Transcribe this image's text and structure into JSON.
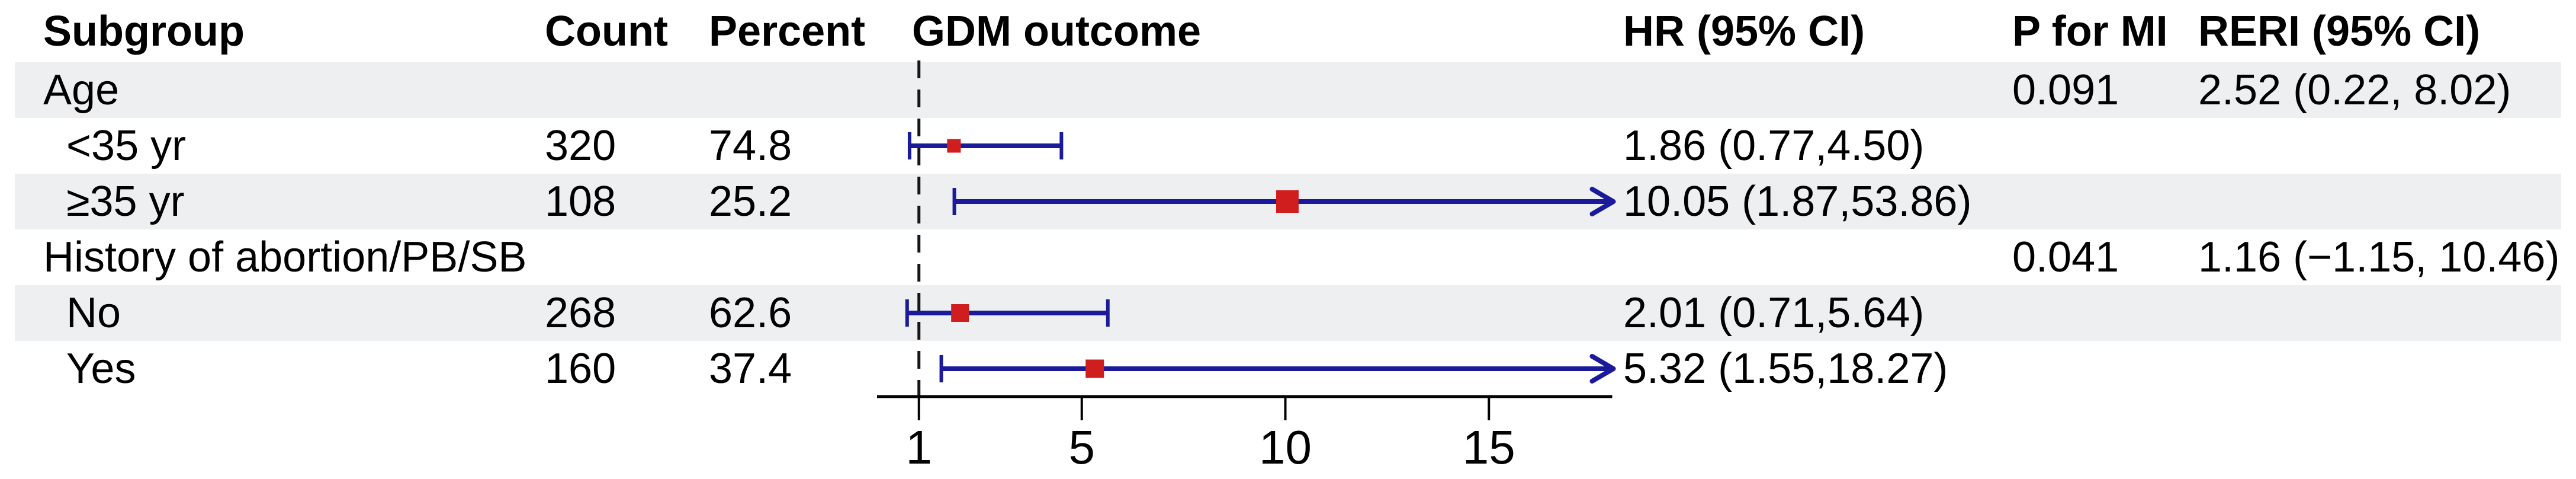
{
  "figure": {
    "headers": {
      "subgroup": "Subgroup",
      "count": "Count",
      "percent": "Percent",
      "gdm_outcome": "GDM outcome",
      "hr_ci": "HR (95% CI)",
      "p_for_mi": "P for MI",
      "reri_ci": "RERI (95% CI)"
    },
    "rows": [
      {
        "label": "Age",
        "count": "",
        "percent": "",
        "hr_ci": "",
        "p_for_mi": "0.091",
        "reri_ci": "2.52 (0.22, 8.02)"
      },
      {
        "label": "<35 yr",
        "count": "320",
        "percent": "74.8",
        "hr_ci": "1.86 (0.77,4.50)",
        "p_for_mi": "",
        "reri_ci": ""
      },
      {
        "label": "≥35 yr",
        "count": "108",
        "percent": "25.2",
        "hr_ci": "10.05 (1.87,53.86)",
        "p_for_mi": "",
        "reri_ci": ""
      },
      {
        "label": "History of abortion/PB/SB",
        "count": "",
        "percent": "",
        "hr_ci": "",
        "p_for_mi": "0.041",
        "reri_ci": "1.16 (−1.15, 10.46)"
      },
      {
        "label": "No",
        "count": "268",
        "percent": "62.6",
        "hr_ci": "2.01 (0.71,5.64)",
        "p_for_mi": "",
        "reri_ci": ""
      },
      {
        "label": "Yes",
        "count": "160",
        "percent": "37.4",
        "hr_ci": "5.32 (1.55,18.27)",
        "p_for_mi": "",
        "reri_ci": ""
      }
    ]
  },
  "chart_data": {
    "type": "forest",
    "title": "GDM outcome",
    "x_ticks": [
      1,
      5,
      10,
      15
    ],
    "xlim": [
      0,
      18
    ],
    "reference_line": 1,
    "series": [
      {
        "name": "<35 yr",
        "row": 1,
        "hr": 1.86,
        "ci_low": 0.77,
        "ci_high": 4.5,
        "marker_px": 23
      },
      {
        "name": "≥35 yr",
        "row": 2,
        "hr": 10.05,
        "ci_low": 1.87,
        "ci_high": 53.86,
        "marker_px": 38
      },
      {
        "name": "No",
        "row": 4,
        "hr": 2.01,
        "ci_low": 0.71,
        "ci_high": 5.64,
        "marker_px": 30
      },
      {
        "name": "Yes",
        "row": 5,
        "hr": 5.32,
        "ci_low": 1.55,
        "ci_high": 18.27,
        "marker_px": 31
      }
    ],
    "grid": false,
    "legend": false,
    "colors": {
      "ci_line": "#1a1a9a",
      "marker": "#d01e1e",
      "stripe": "#edeff0",
      "axis": "#000000",
      "reference_line": "#161616"
    }
  }
}
